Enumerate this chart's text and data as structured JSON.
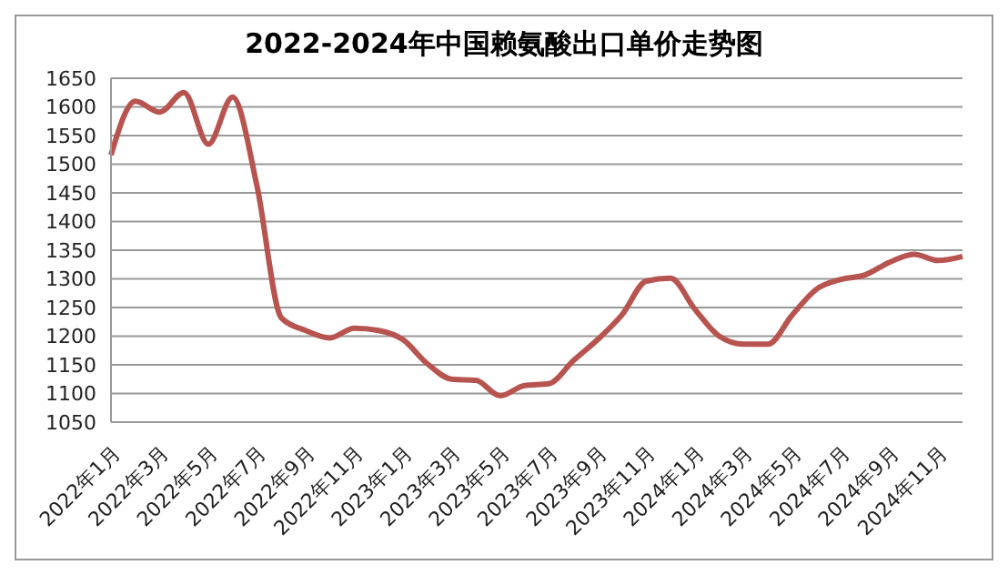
{
  "chart_data": {
    "type": "line",
    "title": "2022-2024年中国赖氨酸出口单价走势图",
    "categories": [
      "2022年1月",
      null,
      "2022年3月",
      null,
      "2022年5月",
      null,
      "2022年7月",
      null,
      "2022年9月",
      null,
      "2022年11月",
      null,
      "2023年1月",
      null,
      "2023年3月",
      null,
      "2023年5月",
      null,
      "2023年7月",
      null,
      "2023年9月",
      null,
      "2023年11月",
      null,
      "2024年1月",
      null,
      "2024年3月",
      null,
      "2024年5月",
      null,
      "2024年7月",
      null,
      "2024年9月",
      null,
      "2024年11月",
      null
    ],
    "series": [
      {
        "color": "#b85450",
        "values": [
          1516,
          1610,
          1591,
          1625,
          1535,
          1617,
          1462,
          1232,
          1210,
          1197,
          1214,
          1210,
          1194,
          1152,
          1125,
          1123,
          1096,
          1114,
          1117,
          1157,
          1194,
          1237,
          1296,
          1301,
          1247,
          1200,
          1186,
          1186,
          1237,
          1282,
          1299,
          1307,
          1329,
          1343,
          1332,
          1339
        ]
      }
    ],
    "ylim": [
      1050,
      1650
    ],
    "yticks": [
      1050,
      1100,
      1150,
      1200,
      1250,
      1300,
      1350,
      1400,
      1450,
      1500,
      1550,
      1600,
      1650
    ],
    "grid": "y",
    "legend": false,
    "marker": "none",
    "line_style": "solid"
  }
}
